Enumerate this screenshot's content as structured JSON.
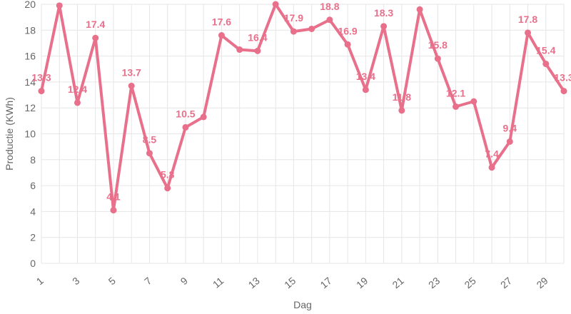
{
  "chart_data": {
    "type": "line",
    "xlabel": "Dag",
    "ylabel": "Productie (KWh)",
    "x": [
      1,
      2,
      3,
      4,
      5,
      6,
      7,
      8,
      9,
      10,
      11,
      12,
      13,
      14,
      15,
      16,
      17,
      18,
      19,
      20,
      21,
      22,
      23,
      24,
      25,
      26,
      27,
      28,
      29,
      30
    ],
    "series": [
      {
        "values": [
          13.3,
          19.9,
          12.4,
          17.4,
          4.1,
          13.7,
          8.5,
          5.8,
          10.5,
          11.3,
          17.6,
          16.5,
          16.4,
          20.0,
          17.9,
          18.1,
          18.8,
          16.9,
          13.4,
          18.3,
          11.8,
          19.6,
          15.8,
          12.1,
          12.5,
          7.4,
          9.4,
          17.8,
          15.4,
          13.3
        ]
      }
    ],
    "point_labels": [
      "13.3",
      "",
      "12.4",
      "17.4",
      "4.1",
      "13.7",
      "8.5",
      "5.8",
      "10.5",
      "",
      "17.6",
      "",
      "16.4",
      "",
      "17.9",
      "",
      "18.8",
      "16.9",
      "13.4",
      "18.3",
      "11.8",
      "",
      "15.8",
      "12.1",
      "",
      "7.4",
      "9.4",
      "17.8",
      "15.4",
      "13.3"
    ],
    "ylim": [
      0,
      20
    ],
    "y_ticks": [
      0,
      2,
      4,
      6,
      8,
      10,
      12,
      14,
      16,
      18,
      20
    ],
    "x_ticks": [
      1,
      3,
      5,
      7,
      9,
      11,
      13,
      15,
      17,
      19,
      21,
      23,
      25,
      27,
      29
    ],
    "grid": true,
    "legend": "none",
    "color": "#e8708b"
  }
}
